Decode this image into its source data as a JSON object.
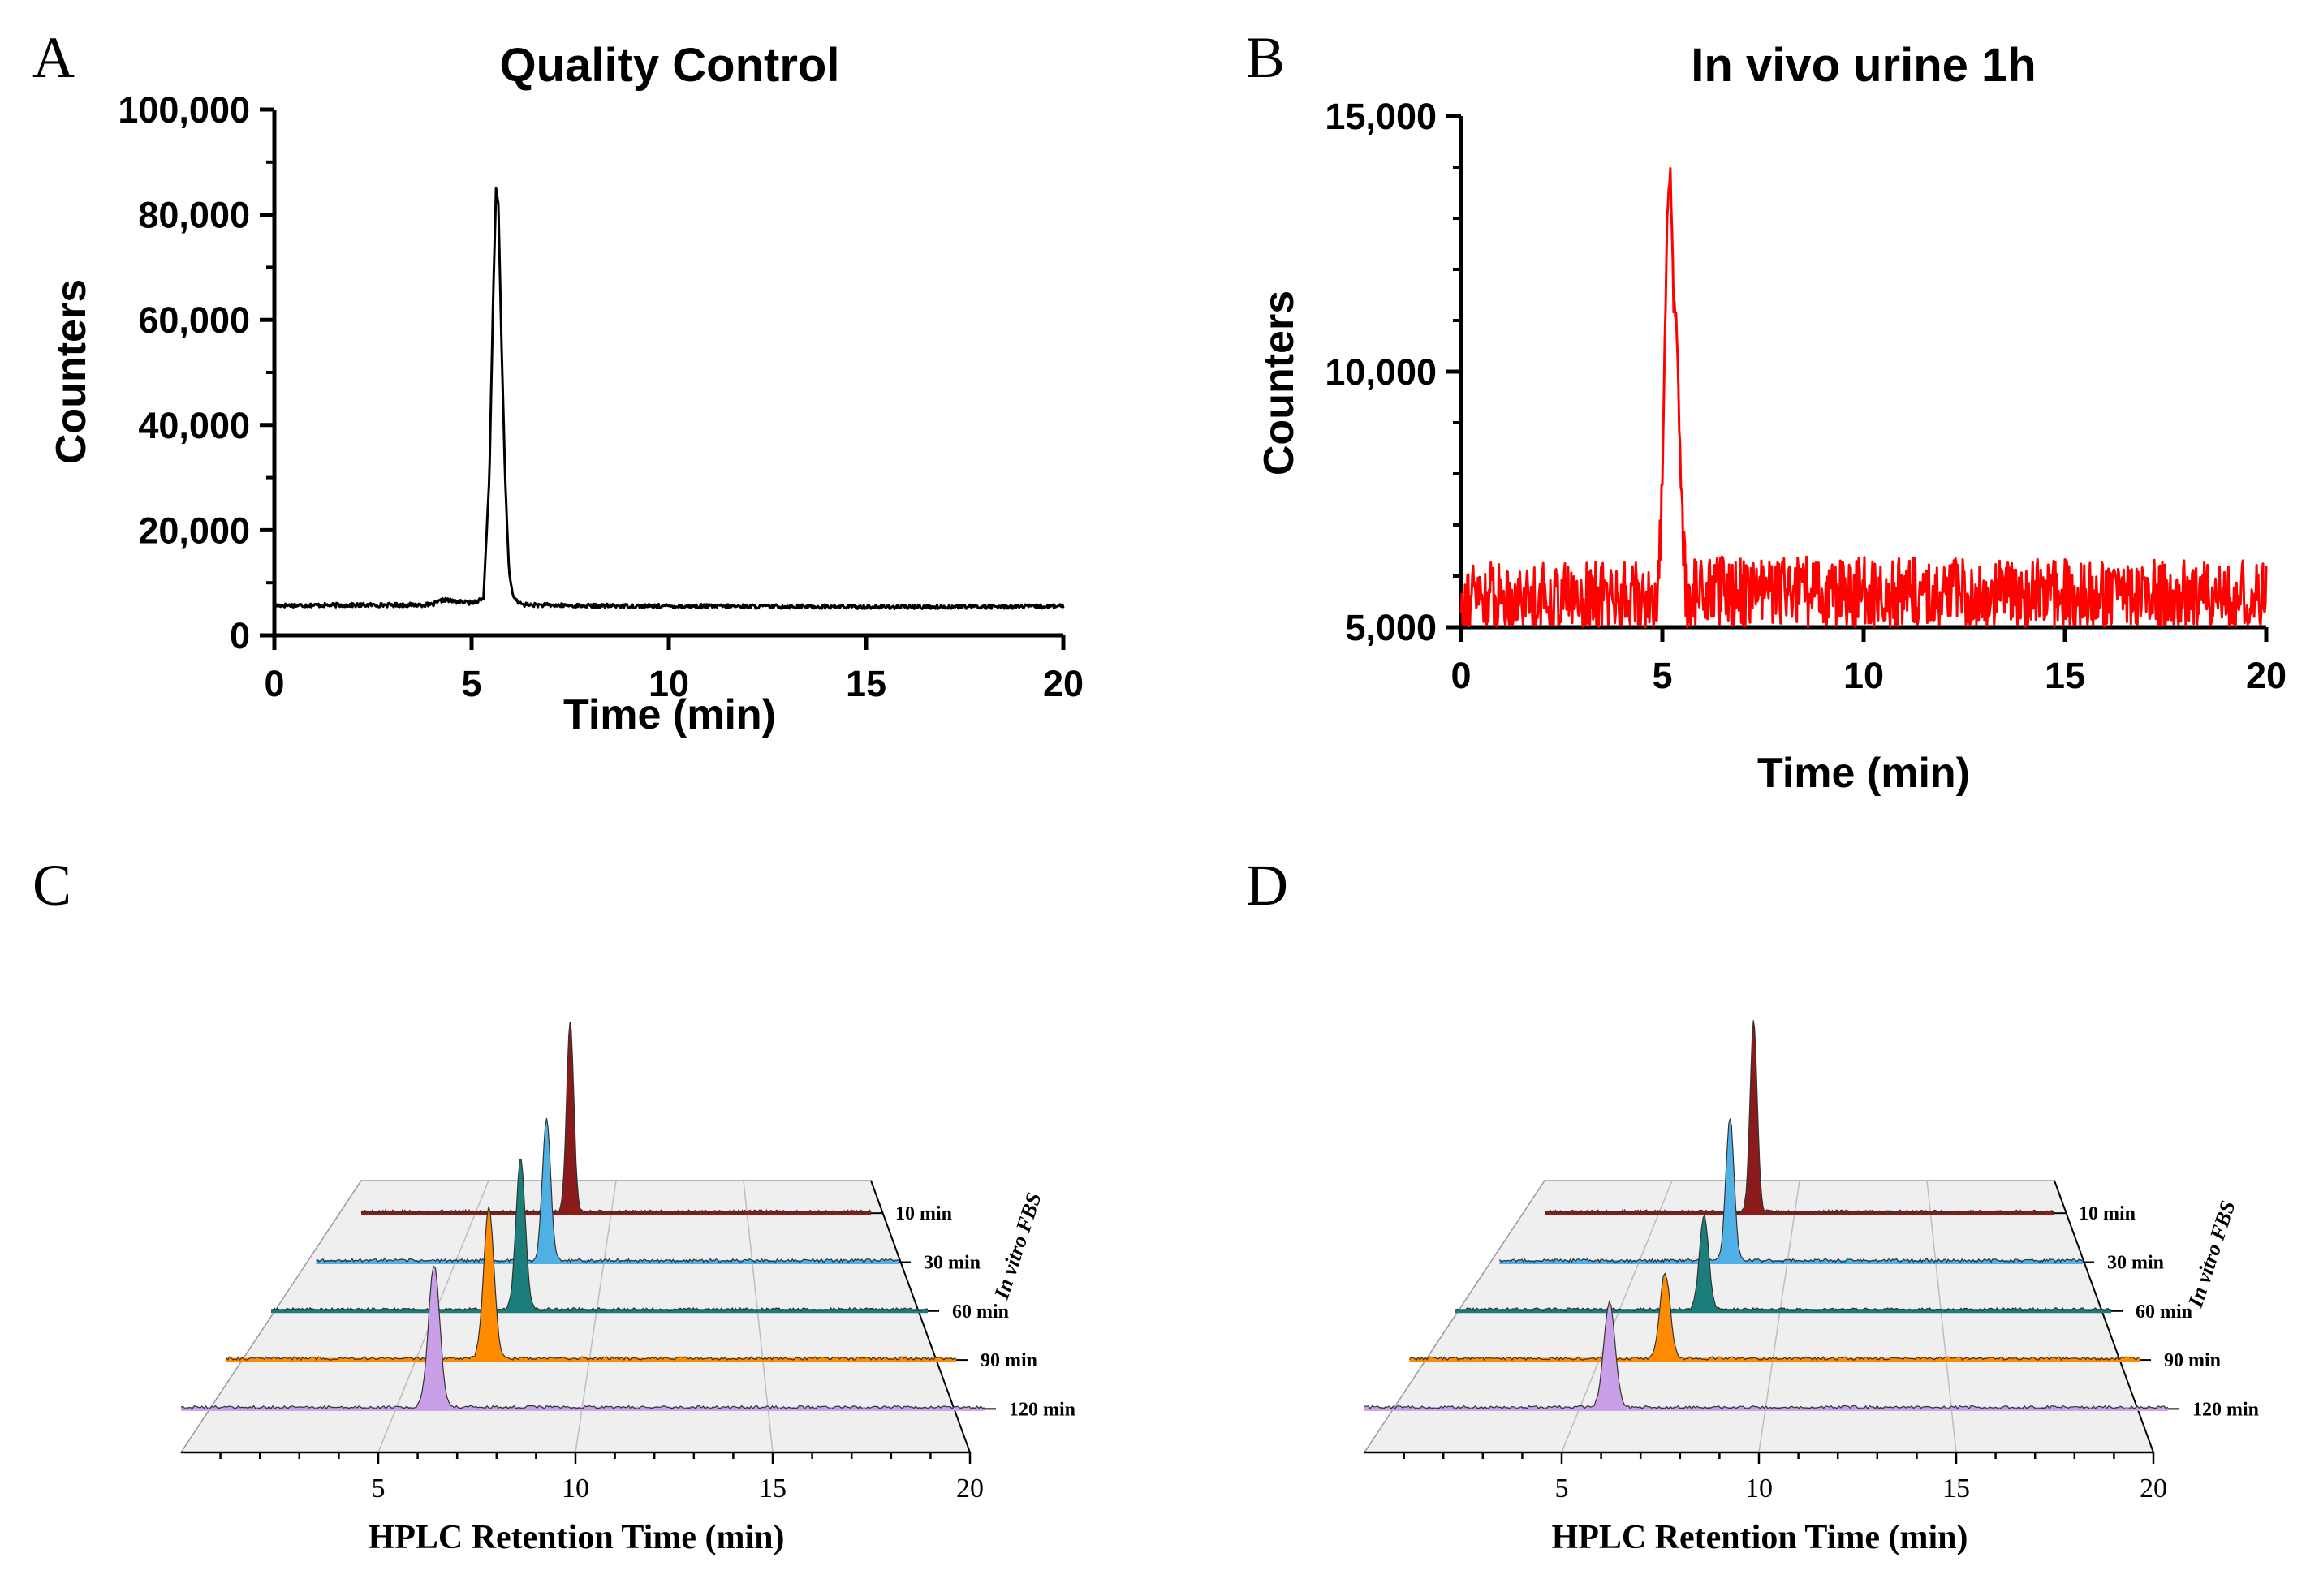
{
  "chart_data": [
    {
      "panel": "A",
      "type": "line",
      "title": "Quality Control",
      "xlabel": "Time (min)",
      "ylabel": "Counters",
      "xlim": [
        0,
        20
      ],
      "ylim": [
        0,
        100000
      ],
      "x_ticks": [
        "0",
        "5",
        "10",
        "15",
        "20"
      ],
      "y_ticks": [
        "0",
        "20,000",
        "40,000",
        "60,000",
        "80,000",
        "100,000"
      ],
      "series": [
        {
          "color": "#000000",
          "baseline": 5700,
          "noise": 400,
          "x": [
            0,
            4.0,
            4.3,
            4.6,
            5.0,
            5.3,
            5.45,
            5.55,
            5.62,
            5.68,
            5.75,
            5.85,
            5.95,
            6.05,
            6.2,
            6.4,
            8,
            12,
            16,
            20
          ],
          "y": [
            5700,
            5800,
            6800,
            6400,
            6200,
            7000,
            30000,
            65000,
            85000,
            82000,
            58000,
            30000,
            12000,
            7500,
            6000,
            5800,
            5600,
            5500,
            5400,
            5500
          ]
        }
      ]
    },
    {
      "panel": "B",
      "type": "line",
      "title": "In vivo urine 1h",
      "xlabel": "Time (min)",
      "ylabel": "Counters",
      "xlim": [
        0,
        20
      ],
      "ylim": [
        5000,
        15000
      ],
      "x_ticks": [
        "0",
        "5",
        "10",
        "15",
        "20"
      ],
      "y_ticks": [
        "5,000",
        "10,000",
        "15,000"
      ],
      "series": [
        {
          "color": "#ff0000",
          "baseline": 5600,
          "noise": 700,
          "x": [
            0,
            4.9,
            5.0,
            5.05,
            5.12,
            5.2,
            5.28,
            5.35,
            5.42,
            5.5,
            5.6,
            5.7,
            20
          ],
          "y": [
            5600,
            5600,
            7800,
            10000,
            13200,
            14000,
            11300,
            11100,
            9000,
            6800,
            5600,
            5700,
            5600
          ]
        }
      ]
    },
    {
      "panel": "C",
      "type": "line",
      "subtype": "waterfall",
      "xlabel": "HPLC Retention Time (min)",
      "zlabel": "In vitro FBS",
      "x_ticks": [
        "5",
        "10",
        "15",
        "20"
      ],
      "xlim": [
        0,
        20
      ],
      "series": [
        {
          "name": "10 min",
          "color": "#8b1a1a",
          "peak_time": 8.2,
          "peak_height": 1.0
        },
        {
          "name": "30 min",
          "color": "#4fb0e6",
          "peak_time": 7.9,
          "peak_height": 0.75
        },
        {
          "name": "60 min",
          "color": "#1c7e7a",
          "peak_time": 7.6,
          "peak_height": 0.8
        },
        {
          "name": "90 min",
          "color": "#ff8c00",
          "peak_time": 7.2,
          "peak_height": 0.8
        },
        {
          "name": "120 min",
          "color": "#c9a0e8",
          "peak_time": 6.3,
          "peak_height": 0.75
        }
      ]
    },
    {
      "panel": "D",
      "type": "line",
      "subtype": "waterfall",
      "xlabel": "HPLC Retention Time (min)",
      "zlabel": "In vitro FBS",
      "x_ticks": [
        "5",
        "10",
        "15",
        "20"
      ],
      "xlim": [
        0,
        20
      ],
      "series": [
        {
          "name": "10 min",
          "color": "#8b1a1a",
          "peak_time": 8.2,
          "peak_height": 1.0
        },
        {
          "name": "30 min",
          "color": "#4fb0e6",
          "peak_time": 7.9,
          "peak_height": 0.75
        },
        {
          "name": "60 min",
          "color": "#1c7e7a",
          "peak_time": 7.6,
          "peak_height": 0.5
        },
        {
          "name": "90 min",
          "color": "#ff8c00",
          "peak_time": 7.0,
          "peak_height": 0.45
        },
        {
          "name": "120 min",
          "color": "#c9a0e8",
          "peak_time": 6.1,
          "peak_height": 0.55
        }
      ]
    }
  ]
}
